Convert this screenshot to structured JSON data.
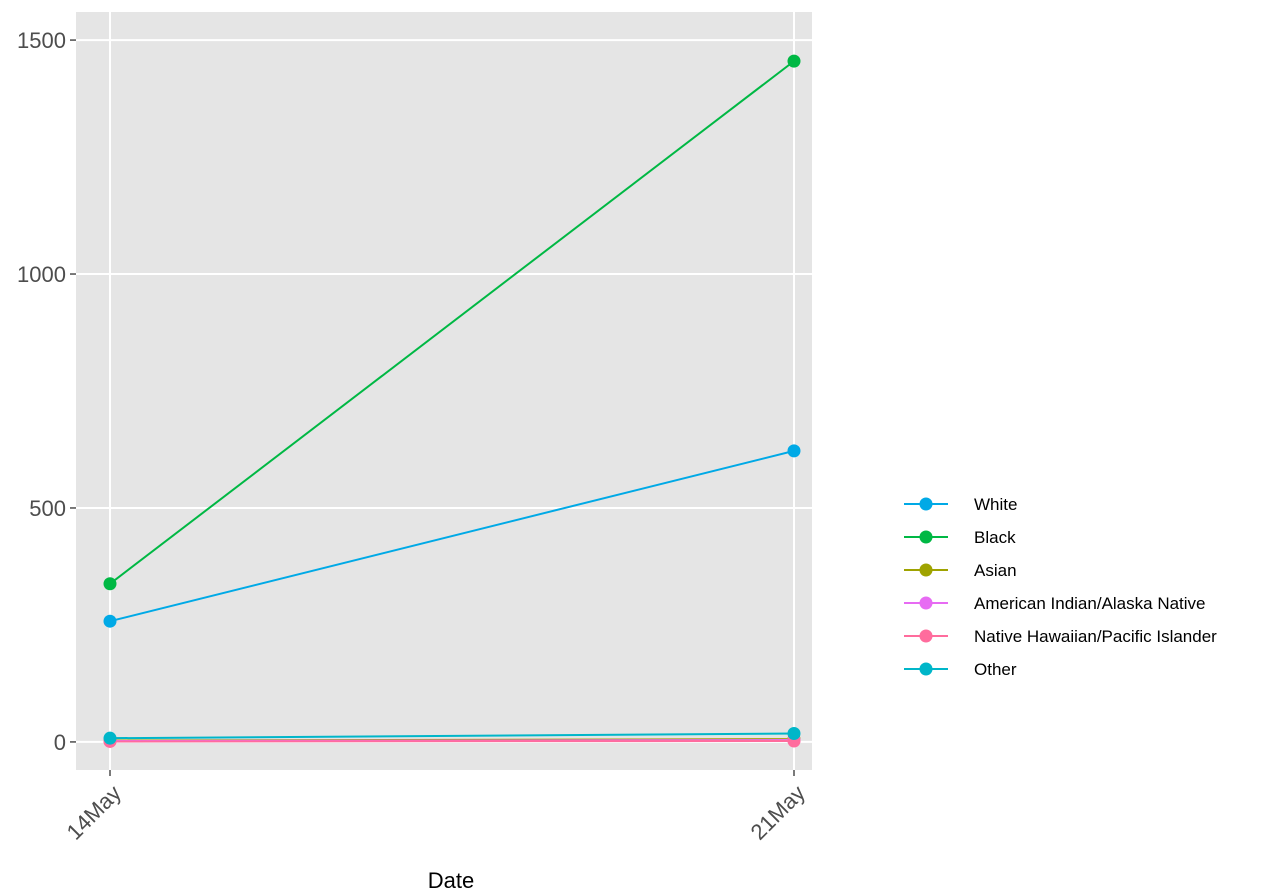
{
  "chart_data": {
    "type": "line",
    "xlabel": "Date",
    "ylabel": "",
    "categories": [
      "14May",
      "21May"
    ],
    "ylim": [
      -60,
      1560
    ],
    "yticks": [
      0,
      500,
      1000,
      1500
    ],
    "grid": true,
    "legend_position": "right",
    "series": [
      {
        "name": "White",
        "color": "#00A9E6",
        "values": [
          258,
          622
        ]
      },
      {
        "name": "Black",
        "color": "#00B844",
        "values": [
          338,
          1455
        ]
      },
      {
        "name": "Asian",
        "color": "#9FA300",
        "values": [
          3,
          6
        ]
      },
      {
        "name": "American Indian/Alaska Native",
        "color": "#E76BF3",
        "values": [
          2,
          4
        ]
      },
      {
        "name": "Native Hawaiian/Pacific Islander",
        "color": "#FF6C9D",
        "values": [
          1,
          2
        ]
      },
      {
        "name": "Other",
        "color": "#00B6C9",
        "values": [
          8,
          18
        ]
      }
    ]
  }
}
